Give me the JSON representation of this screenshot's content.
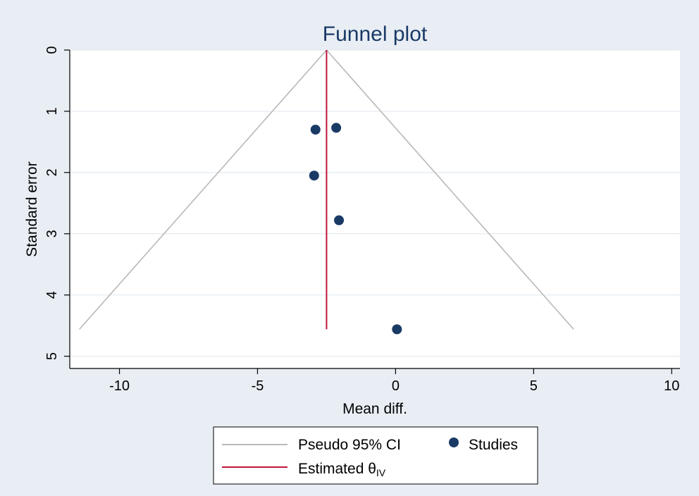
{
  "chart_data": {
    "type": "scatter",
    "title": "Funnel plot",
    "xlabel": "Mean diff.",
    "ylabel": "Standard error",
    "xlim": [
      -11.8,
      10.3
    ],
    "ylim": [
      0,
      5.2
    ],
    "y_reversed": true,
    "grid": true,
    "x_ticks": [
      -10,
      -5,
      0,
      5,
      10
    ],
    "x_tick_labels": [
      "-10",
      "-5",
      "0",
      "5",
      "10"
    ],
    "y_ticks": [
      0,
      1,
      2,
      3,
      4,
      5
    ],
    "y_tick_labels": [
      "0",
      "1",
      "2",
      "3",
      "4",
      "5"
    ],
    "studies": [
      {
        "x": -2.9,
        "y": 1.3
      },
      {
        "x": -2.15,
        "y": 1.27
      },
      {
        "x": -2.95,
        "y": 2.05
      },
      {
        "x": -2.05,
        "y": 2.78
      },
      {
        "x": 0.05,
        "y": 4.56
      }
    ],
    "estimate": {
      "x": -2.5,
      "y_from": 0,
      "y_to": 4.56
    },
    "pseudo_ci": {
      "apex": {
        "x": -2.5,
        "y": 0
      },
      "left": {
        "x": -11.45,
        "y": 4.56
      },
      "right": {
        "x": 6.45,
        "y": 4.56
      }
    },
    "legend": {
      "placement": "bottom",
      "items": [
        {
          "label": "Pseudo 95% CI",
          "kind": "line",
          "color": "#b8b8b8"
        },
        {
          "label": "Studies",
          "kind": "marker",
          "color": "#1a3a66"
        },
        {
          "label": "Estimated θ",
          "sub": "IV",
          "kind": "line",
          "color": "#c0143c"
        }
      ]
    },
    "colors": {
      "plot_bg": "#ffffff",
      "page_bg": "#e8eef4",
      "grid": "#e2eaf0",
      "ci_line": "#b8b8b8",
      "estimate_line": "#c0143c",
      "marker": "#1a3a66",
      "title": "#1a3a66"
    }
  }
}
